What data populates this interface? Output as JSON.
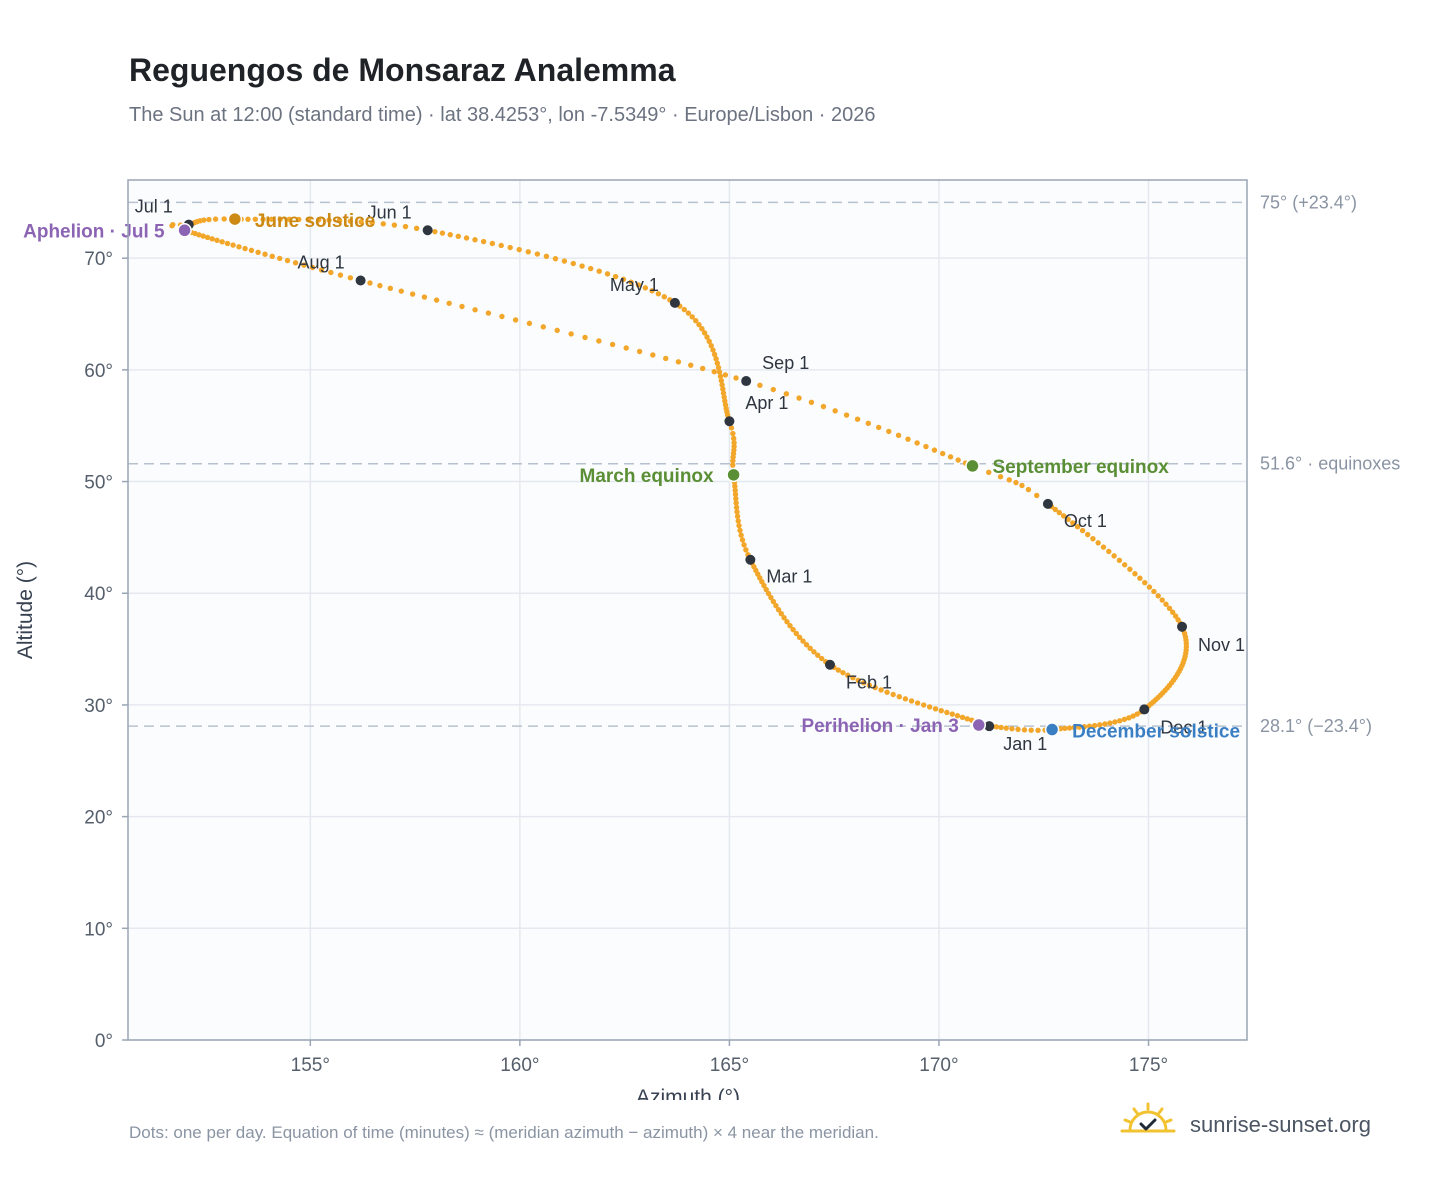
{
  "header": {
    "title": "Reguengos de Monsaraz Analemma",
    "subtitle": "The Sun at 12:00 (standard time) · lat 38.4253°, lon -7.5349° · Europe/Lisbon · 2026"
  },
  "footer": {
    "note": "Dots: one per day. Equation of time (minutes) ≈ (meridian azimuth − azimuth) × 4 near the meridian.",
    "brand": "sunrise-sunset.org",
    "brand_icon": "sun-check-icon"
  },
  "colors": {
    "path": "#f2a62a",
    "month_marker": "#2f3640",
    "june_solstice": "#cc8a14",
    "december_solstice": "#3a7fc4",
    "equinox": "#5b8f35",
    "aphelion_perihelion": "#8c64b4",
    "reference_line": "#b8c2ce",
    "plot_background": "#fafcfe",
    "grid": "#e5e9ef"
  },
  "chart_data": {
    "type": "scatter",
    "title": "Reguengos de Monsaraz Analemma",
    "xlabel": "Azimuth (°)",
    "ylabel": "Altitude (°)",
    "xlim": [
      150.65,
      177.35
    ],
    "ylim": [
      0,
      77
    ],
    "x_ticks": [
      155,
      160,
      165,
      170,
      175
    ],
    "y_ticks": [
      0,
      10,
      20,
      30,
      40,
      50,
      60,
      70
    ],
    "x_tick_labels": [
      "155°",
      "160°",
      "165°",
      "170°",
      "175°"
    ],
    "y_tick_labels": [
      "0°",
      "10°",
      "20°",
      "30°",
      "40°",
      "50°",
      "60°",
      "70°"
    ],
    "grid": true,
    "reference_lines": [
      {
        "y": 75.0,
        "label": "75° (+23.4°)"
      },
      {
        "y": 51.6,
        "label": "51.6° · equinoxes"
      },
      {
        "y": 28.1,
        "label": "28.1° (−23.4°)"
      }
    ],
    "path_anchors": [
      {
        "day": 1,
        "x": 171.2,
        "y": 28.1
      },
      {
        "day": 32,
        "x": 167.4,
        "y": 33.6
      },
      {
        "day": 60,
        "x": 165.5,
        "y": 43.0
      },
      {
        "day": 79,
        "x": 165.1,
        "y": 50.6
      },
      {
        "day": 91,
        "x": 165.0,
        "y": 55.4
      },
      {
        "day": 121,
        "x": 163.7,
        "y": 66.0
      },
      {
        "day": 152,
        "x": 157.8,
        "y": 72.5
      },
      {
        "day": 172,
        "x": 153.2,
        "y": 73.5
      },
      {
        "day": 182,
        "x": 152.1,
        "y": 73.0
      },
      {
        "day": 186,
        "x": 152.0,
        "y": 72.5
      },
      {
        "day": 213,
        "x": 156.2,
        "y": 68.0
      },
      {
        "day": 244,
        "x": 165.4,
        "y": 59.0
      },
      {
        "day": 266,
        "x": 170.8,
        "y": 51.4
      },
      {
        "day": 274,
        "x": 172.6,
        "y": 48.0
      },
      {
        "day": 305,
        "x": 175.8,
        "y": 37.0
      },
      {
        "day": 335,
        "x": 174.9,
        "y": 29.6
      },
      {
        "day": 355,
        "x": 172.7,
        "y": 27.8
      },
      {
        "day": 366,
        "x": 171.2,
        "y": 28.1
      }
    ],
    "month_markers": [
      {
        "label": "Jan 1",
        "x": 171.2,
        "y": 28.1,
        "dx": 14,
        "dy": 24,
        "anchor": "start"
      },
      {
        "label": "Feb 1",
        "x": 167.4,
        "y": 33.6,
        "dx": 16,
        "dy": 24,
        "anchor": "start"
      },
      {
        "label": "Mar 1",
        "x": 165.5,
        "y": 43.0,
        "dx": 16,
        "dy": 23,
        "anchor": "start"
      },
      {
        "label": "Apr 1",
        "x": 165.0,
        "y": 55.4,
        "dx": 16,
        "dy": -12,
        "anchor": "start"
      },
      {
        "label": "May 1",
        "x": 163.7,
        "y": 66.0,
        "dx": -16,
        "dy": -12,
        "anchor": "end"
      },
      {
        "label": "Jun 1",
        "x": 157.8,
        "y": 72.5,
        "dx": -16,
        "dy": -12,
        "anchor": "end"
      },
      {
        "label": "Jul 1",
        "x": 152.1,
        "y": 73.0,
        "dx": -16,
        "dy": -12,
        "anchor": "end"
      },
      {
        "label": "Aug 1",
        "x": 156.2,
        "y": 68.0,
        "dx": -16,
        "dy": -12,
        "anchor": "end"
      },
      {
        "label": "Sep 1",
        "x": 165.4,
        "y": 59.0,
        "dx": 16,
        "dy": -12,
        "anchor": "start"
      },
      {
        "label": "Oct 1",
        "x": 172.6,
        "y": 48.0,
        "dx": 16,
        "dy": 23,
        "anchor": "start"
      },
      {
        "label": "Nov 1",
        "x": 175.8,
        "y": 37.0,
        "dx": 16,
        "dy": 24,
        "anchor": "start"
      },
      {
        "label": "Dec 1",
        "x": 174.9,
        "y": 29.6,
        "dx": 16,
        "dy": 24,
        "anchor": "start"
      }
    ],
    "events": [
      {
        "label": "June solstice",
        "x": 153.2,
        "y": 73.5,
        "color": "#cc8a14",
        "dx": 20,
        "dy": 8,
        "anchor": "start"
      },
      {
        "label": "Aphelion · Jul 5",
        "x": 152.0,
        "y": 72.5,
        "color": "#8c64b4",
        "dx": -20,
        "dy": 7,
        "anchor": "end"
      },
      {
        "label": "March equinox",
        "x": 165.1,
        "y": 50.6,
        "color": "#5b8f35",
        "dx": -20,
        "dy": 7,
        "anchor": "end"
      },
      {
        "label": "September equinox",
        "x": 170.8,
        "y": 51.4,
        "color": "#5b8f35",
        "dx": 20,
        "dy": 7,
        "anchor": "start"
      },
      {
        "label": "Perihelion · Jan 3",
        "x": 170.95,
        "y": 28.2,
        "color": "#8c64b4",
        "dx": -20,
        "dy": 7,
        "anchor": "end"
      },
      {
        "label": "December solstice",
        "x": 172.7,
        "y": 27.8,
        "color": "#3a7fc4",
        "dx": 20,
        "dy": 8,
        "anchor": "start"
      }
    ]
  }
}
